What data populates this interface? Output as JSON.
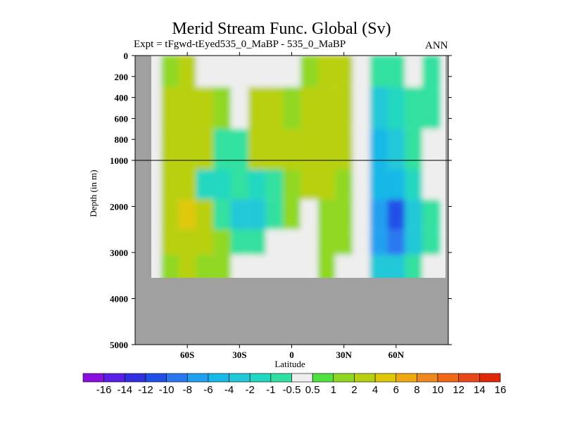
{
  "chart_data": {
    "type": "heatmap",
    "title": "Merid Stream Func. Global (Sv)",
    "subtitle": "Expt = tFgwd-tEyed535_0_MaBP - 535_0_MaBP",
    "season_label": "ANN",
    "xlabel": "Latitude",
    "ylabel": "Depth (in m)",
    "x_ticks": [
      {
        "value": -60,
        "label": "60S"
      },
      {
        "value": -30,
        "label": "30S"
      },
      {
        "value": 0,
        "label": "0"
      },
      {
        "value": 30,
        "label": "30N"
      },
      {
        "value": 60,
        "label": "60N"
      }
    ],
    "xlim": [
      -90,
      90
    ],
    "y_ticks_upper": [
      {
        "value": 0,
        "label": "0"
      },
      {
        "value": 200,
        "label": "200"
      },
      {
        "value": 400,
        "label": "400"
      },
      {
        "value": 600,
        "label": "600"
      },
      {
        "value": 800,
        "label": "800"
      },
      {
        "value": 1000,
        "label": "1000"
      }
    ],
    "y_ticks_lower": [
      {
        "value": 2000,
        "label": "2000"
      },
      {
        "value": 3000,
        "label": "3000"
      },
      {
        "value": 4000,
        "label": "4000"
      },
      {
        "value": 5000,
        "label": "5000"
      }
    ],
    "ylim": [
      0,
      5000
    ],
    "y_break": 1000,
    "missing_color": "#a0a0a0",
    "colorbar": {
      "labels": [
        "-16",
        "-14",
        "-12",
        "-10",
        "-8",
        "-6",
        "-4",
        "-2",
        "-1",
        "-0.5",
        "0.5",
        "1",
        "2",
        "4",
        "6",
        "8",
        "10",
        "12",
        "14",
        "16"
      ],
      "colors": [
        "#8a10e0",
        "#5a1ee8",
        "#3030e0",
        "#2050e8",
        "#2a78f0",
        "#20a0f0",
        "#18b8e8",
        "#20c8d8",
        "#20d8c0",
        "#30e0a0",
        "#eeeeee",
        "#50e040",
        "#90d820",
        "#b8d010",
        "#e0c808",
        "#f0a810",
        "#f08820",
        "#f06818",
        "#e84818",
        "#e02808"
      ]
    },
    "data_grid": {
      "lats": [
        -80,
        -70,
        -60,
        -50,
        -40,
        -30,
        -20,
        -10,
        0,
        10,
        20,
        30,
        40,
        50,
        60,
        70,
        80
      ],
      "depths": [
        100,
        500,
        900,
        1500,
        2200,
        2800,
        3300
      ],
      "values": [
        [
          0.0,
          1.5,
          2.0,
          0.0,
          0.0,
          0.0,
          0.0,
          0.0,
          0.0,
          1.0,
          2.5,
          2.0,
          0.0,
          -1.0,
          -0.8,
          0.0,
          -0.6
        ],
        [
          0.0,
          2.0,
          2.5,
          2.0,
          1.5,
          0.0,
          2.0,
          2.0,
          1.0,
          2.0,
          2.5,
          2.0,
          0.0,
          -3.0,
          -2.0,
          -1.0,
          -0.6
        ],
        [
          0.0,
          2.0,
          3.0,
          2.5,
          -1.0,
          -0.8,
          2.0,
          3.0,
          2.0,
          2.0,
          2.5,
          2.0,
          0.0,
          -5.0,
          -3.0,
          -1.0,
          0.0
        ],
        [
          0.0,
          2.0,
          3.0,
          -1.5,
          -2.0,
          -1.0,
          -2.0,
          -1.0,
          1.5,
          2.0,
          2.0,
          1.5,
          0.0,
          -6.0,
          -6.0,
          -2.0,
          0.0
        ],
        [
          0.0,
          2.0,
          4.0,
          2.0,
          -1.0,
          -2.5,
          -3.0,
          -1.0,
          1.0,
          0.0,
          1.0,
          1.0,
          0.0,
          -8.0,
          -12.0,
          -3.0,
          -1.0
        ],
        [
          0.0,
          2.0,
          3.0,
          2.0,
          1.0,
          -1.0,
          -1.0,
          0.0,
          0.0,
          0.0,
          1.0,
          1.0,
          0.0,
          -7.0,
          -9.0,
          -3.0,
          -1.0
        ],
        [
          0.0,
          1.0,
          2.0,
          1.0,
          1.0,
          0.0,
          0.0,
          0.0,
          0.0,
          0.0,
          1.0,
          0.0,
          0.0,
          -3.0,
          -3.0,
          -1.0,
          0.0
        ]
      ]
    }
  }
}
